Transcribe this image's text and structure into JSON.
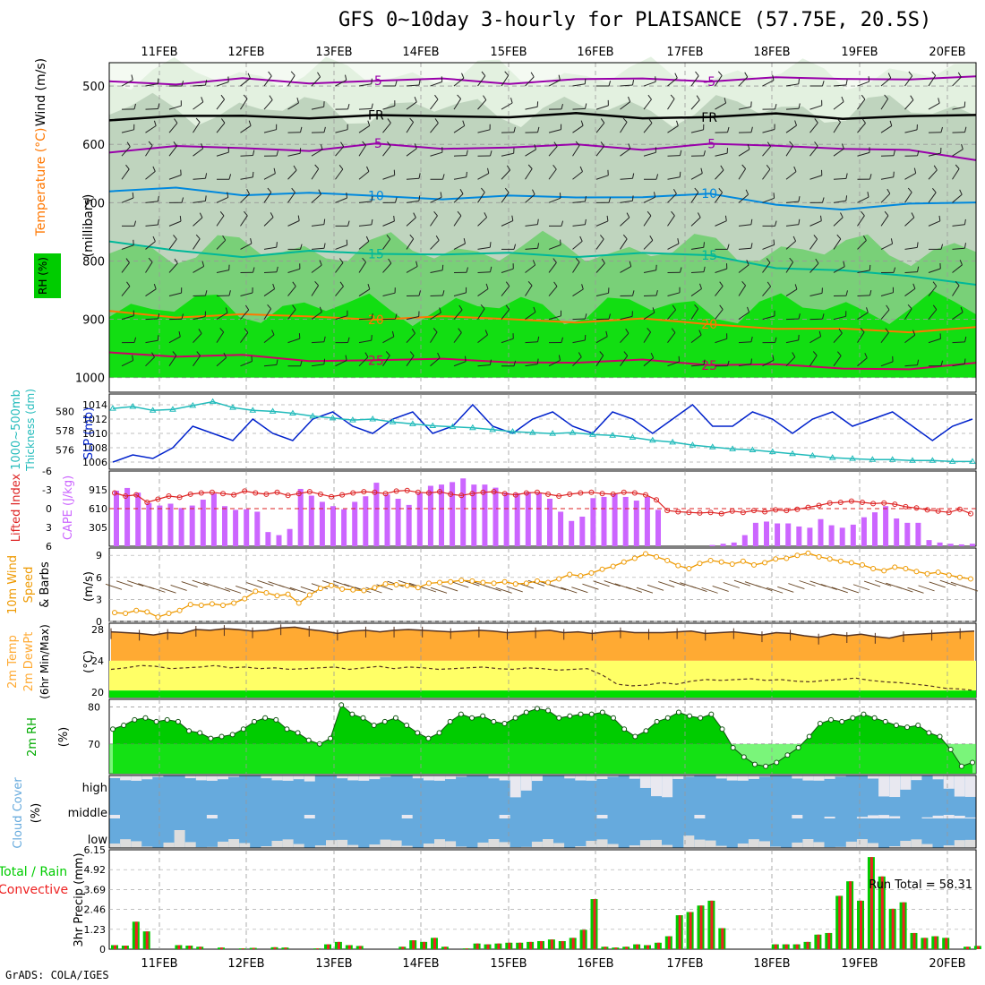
{
  "title": "GFS 0~10day 3-hourly for PLAISANCE (57.75E, 20.5S)",
  "credit": "GrADS: COLA/IGES",
  "colors": {
    "purple": "#9900aa",
    "black": "#000000",
    "blue": "#0088dd",
    "teal": "#00b899",
    "orange": "#ff7700",
    "crimson": "#cc0066",
    "slp": "#0022cc",
    "thick": "#22bbbb",
    "li": "#dd2222",
    "cape": "#cc66ff",
    "wind10": "#ee9900",
    "barb": "#664422",
    "tempfill": "#ffaa33",
    "dewfill": "#ffff66",
    "rhfill": "#00cc00",
    "cloudbg": "#66aadd",
    "cloud": "#e8e8f0",
    "rain": "#00cc00",
    "conv": "#ee2222"
  },
  "chart_data": [
    {
      "type": "heatmap",
      "name": "upper-air",
      "xlabels": [
        "11FEB",
        "12FEB",
        "13FEB",
        "14FEB",
        "15FEB",
        "16FEB",
        "17FEB",
        "18FEB",
        "19FEB",
        "20FEB"
      ],
      "ylabels": [
        "500",
        "600",
        "700",
        "800",
        "900",
        "1000"
      ],
      "ylabel": "(millibars)",
      "legend_rh": "RH (%)",
      "legend_temp": "Temperature (°C)",
      "legend_wind": "Wind (m/s)",
      "ylim": [
        460,
        1025
      ],
      "isotherms": [
        {
          "label": "-5",
          "color": "purple",
          "p": [
            492,
            494,
            491,
            493,
            490,
            491,
            492,
            490,
            489,
            488,
            489,
            487,
            486,
            488
          ]
        },
        {
          "label": "FR",
          "color": "black",
          "p": [
            555,
            552,
            554,
            551,
            553,
            552,
            550,
            551,
            553,
            552,
            551,
            552,
            553,
            552
          ]
        },
        {
          "label": "-5",
          "color": "purple",
          "p": [
            610,
            607,
            605,
            609,
            603,
            604,
            606,
            603,
            605,
            602,
            603,
            604,
            614,
            625
          ]
        },
        {
          "label": "10",
          "color": "blue",
          "p": [
            680,
            678,
            683,
            685,
            690,
            690,
            692,
            690,
            688,
            689,
            700,
            712,
            705,
            695
          ]
        },
        {
          "label": "15",
          "color": "teal",
          "p": [
            770,
            782,
            790,
            787,
            785,
            788,
            790,
            789,
            788,
            792,
            808,
            820,
            825,
            838
          ]
        },
        {
          "label": "20",
          "color": "orange",
          "p": [
            890,
            893,
            892,
            898,
            896,
            898,
            900,
            902,
            903,
            906,
            915,
            920,
            918,
            915
          ]
        },
        {
          "label": "25",
          "color": "crimson",
          "p": [
            958,
            960,
            965,
            970,
            968,
            972,
            970,
            975,
            972,
            974,
            980,
            985,
            982,
            979
          ]
        }
      ],
      "labels": [
        "-5",
        "FR",
        "-5",
        "10",
        "15",
        "20",
        "15",
        "25",
        "-5",
        "FR",
        "10",
        "15",
        "20",
        "25"
      ]
    },
    {
      "type": "line",
      "name": "slp-thickness",
      "ylabel_left": "1000~500mb Thickness (dm)",
      "ylabel_right": "SLP (mb)",
      "yticks_left": [
        "580",
        "578",
        "576"
      ],
      "yticks_right": [
        "1014",
        "1012",
        "1010",
        "1008",
        "1006"
      ],
      "series": [
        {
          "name": "SLP",
          "values": [
            1006,
            1007,
            1006.5,
            1008,
            1011,
            1010,
            1009,
            1012,
            1010,
            1009,
            1012,
            1013,
            1011,
            1010,
            1012,
            1013,
            1010,
            1011,
            1014,
            1011,
            1010,
            1012,
            1013,
            1011,
            1010,
            1013,
            1012,
            1010,
            1012,
            1014,
            1011,
            1011,
            1013,
            1012,
            1010,
            1012,
            1013,
            1011,
            1012,
            1013,
            1011,
            1009,
            1011,
            1012
          ]
        },
        {
          "name": "Thickness",
          "values": [
            580.3,
            580.5,
            580.1,
            580.2,
            580.6,
            581,
            580.4,
            580.1,
            580,
            579.8,
            579.5,
            579.3,
            579.1,
            579.2,
            578.9,
            578.7,
            578.5,
            578.4,
            578.3,
            578.1,
            577.9,
            577.8,
            577.7,
            577.8,
            577.6,
            577.5,
            577.3,
            577,
            576.8,
            576.5,
            576.3,
            576.1,
            576,
            575.8,
            575.6,
            575.4,
            575.2,
            575.1,
            575,
            575,
            574.9,
            574.9,
            574.8,
            574.8
          ]
        }
      ]
    },
    {
      "type": "bar",
      "name": "li-cape",
      "ylabel_left": "Lifted Index",
      "ylabel_right": "CAPE (J/kg)",
      "yticks_left": [
        "-6",
        "-3",
        "0",
        "3",
        "6"
      ],
      "yticks_right": [
        "915",
        "610",
        "305"
      ],
      "cape": [
        900,
        945,
        870,
        700,
        660,
        690,
        620,
        660,
        755,
        855,
        650,
        590,
        600,
        560,
        230,
        180,
        280,
        930,
        820,
        720,
        650,
        600,
        720,
        810,
        1030,
        840,
        770,
        670,
        860,
        980,
        1000,
        1040,
        1100,
        1000,
        1000,
        950,
        870,
        860,
        880,
        860,
        770,
        560,
        410,
        480,
        780,
        800,
        850,
        800,
        740,
        800,
        590,
        0,
        0,
        0,
        0,
        20,
        40,
        60,
        180,
        380,
        400,
        370,
        370,
        320,
        300,
        440,
        340,
        300,
        350,
        470,
        550,
        650,
        450,
        380,
        380,
        100,
        60,
        40,
        30,
        40
      ],
      "li": [
        -2.5,
        -2,
        -2.2,
        -1,
        -1.5,
        -2,
        -1.8,
        -2.3,
        -2.5,
        -2.6,
        -2.4,
        -2.2,
        -2.8,
        -2.5,
        -2.3,
        -2.6,
        -2.1,
        -2.4,
        -2.7,
        -2.3,
        -1.9,
        -2.2,
        -2.5,
        -2.7,
        -2.6,
        -2.4,
        -2.8,
        -2.9,
        -2.6,
        -2.5,
        -2.7,
        -2.3,
        -2.1,
        -2.4,
        -2.6,
        -2.7,
        -2.4,
        -2.2,
        -2.5,
        -2.6,
        -2.3,
        -2.0,
        -2.3,
        -2.5,
        -2.6,
        -2.4,
        -2.3,
        -2.6,
        -2.5,
        -2.2,
        -1.4,
        0.3,
        0.5,
        0.6,
        0.7,
        0.6,
        0.8,
        0.4,
        0.6,
        0.3,
        0.5,
        0.2,
        0.3,
        0.1,
        -0.2,
        -0.5,
        -0.9,
        -1,
        -1.2,
        -1,
        -0.8,
        -0.9,
        -0.7,
        -0.3,
        -0.1,
        0.2,
        0.4,
        0.6,
        0.1,
        0.8
      ]
    },
    {
      "type": "line",
      "name": "wind10m",
      "ylabel": "10m Wind Speed & Barbs (m/s)",
      "yticks": [
        "9",
        "6",
        "3",
        "0"
      ],
      "ylim": [
        0,
        10
      ],
      "values": [
        1.2,
        1.1,
        1.5,
        1.3,
        0.6,
        1.1,
        1.5,
        2.3,
        2.2,
        2.4,
        2.2,
        2.5,
        3.1,
        4.1,
        3.9,
        3.5,
        3.7,
        2.5,
        3.6,
        4.5,
        4.9,
        4.4,
        4.3,
        4.2,
        4.6,
        5.1,
        5.0,
        4.9,
        4.6,
        5.2,
        5.3,
        5.4,
        5.6,
        5.5,
        5.3,
        5.2,
        5.4,
        5.1,
        5.2,
        5.5,
        5.3,
        5.8,
        6.4,
        6.2,
        6.6,
        7.1,
        7.5,
        8.1,
        8.6,
        9.2,
        8.8,
        8.3,
        7.6,
        7.2,
        7.9,
        8.3,
        8.1,
        7.8,
        8.2,
        7.7,
        8.0,
        8.5,
        8.6,
        9.0,
        9.3,
        8.8,
        8.5,
        8.2,
        8.0,
        7.7,
        7.2,
        6.9,
        7.4,
        7.2,
        6.8,
        6.5,
        6.7,
        6.3,
        6.0,
        5.8
      ]
    },
    {
      "type": "area",
      "name": "temperature",
      "ylabel": "2m Temp / 2m DewPt (6hr Min/Max) (°C)",
      "yticks": [
        "28",
        "24",
        "20"
      ],
      "ylim": [
        19.3,
        28.8
      ],
      "temp": [
        27.7,
        27.6,
        27.5,
        27.3,
        27.6,
        27.5,
        28.0,
        27.9,
        28.1,
        28.0,
        27.8,
        27.9,
        28.2,
        28.3,
        28.0,
        27.8,
        27.5,
        27.8,
        27.9,
        27.7,
        27.9,
        28.0,
        27.9,
        27.8,
        27.7,
        27.8,
        27.9,
        27.8,
        27.6,
        27.7,
        27.8,
        27.9,
        27.6,
        27.7,
        27.5,
        27.7,
        27.8,
        27.6,
        27.6,
        27.6,
        27.7,
        27.8,
        27.5,
        27.6,
        27.7,
        27.5,
        27.3,
        27.6,
        27.5,
        27.2,
        27.0,
        27.4,
        27.2,
        27.4,
        27.1,
        26.9,
        27.3,
        27.4,
        27.5,
        27.6,
        27.7,
        27.8
      ],
      "dew": [
        22.9,
        23.1,
        23.4,
        23.3,
        23.0,
        23.1,
        23.2,
        23.4,
        23.1,
        23.2,
        23.0,
        23.1,
        22.9,
        23.0,
        23.1,
        23.2,
        22.9,
        23.1,
        23.3,
        23.0,
        23.2,
        23.1,
        22.9,
        23.0,
        23.1,
        23.2,
        23.0,
        22.9,
        23.1,
        23.0,
        22.8,
        22.9,
        23.0,
        22.2,
        21.0,
        20.8,
        20.9,
        21.2,
        21.0,
        21.4,
        21.6,
        21.5,
        21.6,
        21.7,
        21.5,
        21.6,
        21.4,
        21.3,
        21.5,
        21.6,
        21.8,
        21.5,
        21.3,
        21.2,
        21.0,
        20.8,
        20.5,
        20.4,
        20.2
      ]
    },
    {
      "type": "area",
      "name": "rh2m",
      "ylabel": "2m RH (%)",
      "yticks": [
        "80",
        "70"
      ],
      "ylim": [
        62,
        82
      ],
      "values": [
        74,
        75,
        76.5,
        77,
        76,
        76.5,
        76,
        73.5,
        73,
        71.5,
        72,
        72.5,
        74,
        76,
        77,
        76.5,
        74,
        73,
        71,
        70,
        71.5,
        80.5,
        78,
        77,
        75,
        76,
        77,
        75,
        73,
        71.5,
        73,
        76,
        78,
        77,
        77.5,
        76,
        75.5,
        77,
        78.5,
        79.5,
        79,
        77,
        77.5,
        78,
        78,
        78.5,
        77,
        74,
        72,
        73.5,
        76,
        77,
        78.5,
        77.5,
        77,
        78,
        74,
        69,
        66.5,
        64.5,
        64,
        65,
        67,
        69,
        72,
        75.5,
        76.5,
        76,
        77,
        78,
        77,
        76,
        75,
        74.5,
        75,
        73,
        72,
        68.5,
        64,
        65
      ]
    },
    {
      "type": "area",
      "name": "cloud",
      "ylabel": "Cloud Cover (%)",
      "yticks": [
        "high",
        "middle",
        "low"
      ]
    },
    {
      "type": "bar",
      "name": "precip",
      "ylabel": "3hr Precip (mm)",
      "legend": "Total / Rain / Convective",
      "legend_total": "Total / Rain",
      "legend_conv": "Convective",
      "run_total_label": "Run Total = 58.31",
      "yticks": [
        "6.15",
        "4.92",
        "3.69",
        "2.46",
        "1.23",
        "0"
      ],
      "ylim": [
        0,
        6.15
      ],
      "values": [
        0.25,
        0.22,
        1.7,
        1.1,
        0,
        0,
        0.25,
        0.22,
        0.15,
        0,
        0.1,
        0,
        0.05,
        0.08,
        0,
        0.12,
        0.1,
        0,
        0,
        0.05,
        0.3,
        0.45,
        0.25,
        0.2,
        0,
        0,
        0,
        0.15,
        0.55,
        0.45,
        0.7,
        0.15,
        0,
        0.05,
        0.35,
        0.3,
        0.35,
        0.4,
        0.4,
        0.45,
        0.5,
        0.6,
        0.5,
        0.7,
        1.2,
        3.1,
        0.15,
        0.1,
        0.15,
        0.3,
        0.25,
        0.4,
        0.8,
        2.1,
        2.3,
        2.7,
        3.0,
        1.3,
        0,
        0,
        0,
        0,
        0.3,
        0.3,
        0.3,
        0.45,
        0.9,
        1.0,
        3.3,
        4.2,
        3.0,
        5.7,
        4.5,
        2.5,
        2.9,
        1.0,
        0.7,
        0.8,
        0.7,
        0,
        0.15,
        0.2
      ]
    }
  ]
}
